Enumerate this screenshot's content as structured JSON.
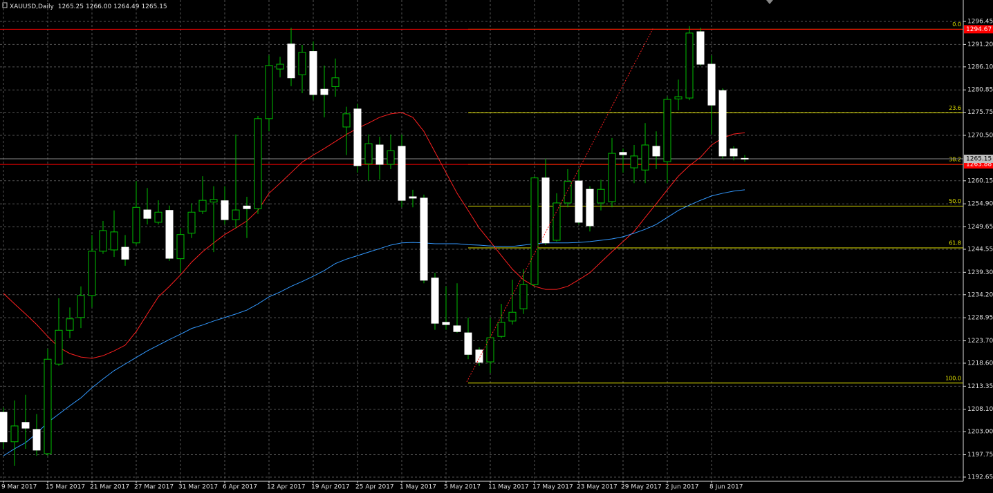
{
  "header": {
    "symbol": "XAUUSD,Daily",
    "ohlc": [
      "1265.25",
      "1266.00",
      "1264.49",
      "1265.15"
    ]
  },
  "chart_data": {
    "type": "candlestick",
    "categories": [
      "9 Mar 2017",
      null,
      null,
      null,
      "15 Mar 2017",
      null,
      null,
      null,
      "21 Mar 2017",
      null,
      null,
      null,
      "27 Mar 2017",
      null,
      null,
      null,
      "31 Mar 2017",
      null,
      null,
      null,
      "6 Apr 2017",
      null,
      null,
      null,
      "12 Apr 2017",
      null,
      null,
      null,
      "19 Apr 2017",
      null,
      null,
      null,
      "25 Apr 2017",
      null,
      null,
      null,
      "1 May 2017",
      null,
      null,
      null,
      "5 May 2017",
      null,
      null,
      null,
      "11 May 2017",
      null,
      null,
      null,
      "17 May 2017",
      null,
      null,
      null,
      "23 May 2017",
      null,
      null,
      null,
      "29 May 2017",
      null,
      null,
      null,
      "2 Jun 2017",
      null,
      null,
      null,
      "8 Jun 2017",
      null,
      null,
      null
    ],
    "open": [
      1207.4,
      1200.7,
      1205.1,
      1203.5,
      1198.0,
      1218.4,
      1226.1,
      1229.0,
      1234.0,
      1244.1,
      1244.4,
      1245.0,
      1246.0,
      1253.5,
      1250.7,
      1253.4,
      1242.4,
      1248.2,
      1253.2,
      1255.3,
      1255.6,
      1251.3,
      1254.4,
      1253.8,
      1274.3,
      1285.6,
      1291.3,
      1284.3,
      1289.6,
      1281.0,
      1281.6,
      1272.4,
      1276.5,
      1264.0,
      1268.3,
      1263.9,
      1268.0,
      1256.5,
      1256.2,
      1238.0,
      1227.9,
      1227.1,
      1225.5,
      1221.6,
      1218.9,
      1224.7,
      1228.2,
      1231.0,
      1236.5,
      1260.8,
      1246.6,
      1255.1,
      1260.1,
      1258.2,
      1255.1,
      1255.4,
      1266.6,
      1263.1,
      1262.6,
      1268.0,
      1264.5,
      1278.8,
      1279.0,
      1294.1,
      1286.7,
      1280.7,
      1267.4,
      1265.25
    ],
    "high": [
      1208.5,
      1210.1,
      1211.4,
      1207.0,
      1221.9,
      1233.4,
      1231.3,
      1236.1,
      1247.8,
      1251.0,
      1253.4,
      1247.8,
      1260.1,
      1258.5,
      1255.7,
      1254.5,
      1249.4,
      1255.0,
      1261.2,
      1258.9,
      1258.9,
      1270.7,
      1256.5,
      1274.9,
      1288.7,
      1288.4,
      1295.0,
      1291.1,
      1291.9,
      1286.4,
      1288.0,
      1277.0,
      1277.7,
      1270.7,
      1270.2,
      1270.7,
      1270.7,
      1258.1,
      1257.0,
      1239.2,
      1236.1,
      1236.8,
      1229.0,
      1222.2,
      1229.0,
      1232.1,
      1237.6,
      1240.0,
      1261.2,
      1265.2,
      1257.3,
      1262.8,
      1262.8,
      1258.9,
      1260.4,
      1269.9,
      1267.5,
      1268.3,
      1273.3,
      1271.4,
      1279.3,
      1283.2,
      1295.4,
      1295.0,
      1288.7,
      1281.2,
      1268.0,
      1266.0
    ],
    "low": [
      1199.1,
      1195.2,
      1199.1,
      1197.5,
      1197.5,
      1218.0,
      1224.3,
      1226.6,
      1231.3,
      1243.5,
      1242.8,
      1240.8,
      1245.5,
      1250.2,
      1250.2,
      1241.9,
      1239.2,
      1247.1,
      1252.6,
      1243.9,
      1250.2,
      1249.4,
      1247.1,
      1252.6,
      1271.4,
      1283.7,
      1281.7,
      1280.1,
      1278.5,
      1274.6,
      1279.3,
      1266.0,
      1262.0,
      1260.1,
      1260.4,
      1262.8,
      1254.1,
      1254.1,
      1236.8,
      1226.2,
      1226.2,
      1225.5,
      1219.5,
      1218.0,
      1216.4,
      1224.3,
      1227.4,
      1229.8,
      1236.1,
      1245.5,
      1246.3,
      1254.1,
      1250.2,
      1248.6,
      1253.4,
      1254.1,
      1262.0,
      1259.6,
      1259.6,
      1262.8,
      1259.6,
      1276.2,
      1278.5,
      1286.4,
      1270.7,
      1265.2,
      1264.8,
      1264.49
    ],
    "close": [
      1200.7,
      1204.3,
      1203.8,
      1198.8,
      1219.5,
      1226.1,
      1228.7,
      1234.0,
      1244.1,
      1248.8,
      1248.5,
      1242.3,
      1254.1,
      1251.6,
      1253.0,
      1242.5,
      1247.9,
      1253.0,
      1255.7,
      1255.9,
      1251.3,
      1253.5,
      1253.8,
      1274.3,
      1286.4,
      1286.7,
      1283.6,
      1289.4,
      1279.8,
      1279.8,
      1283.6,
      1275.4,
      1263.6,
      1268.6,
      1263.9,
      1267.0,
      1255.7,
      1256.2,
      1237.5,
      1227.7,
      1227.4,
      1225.8,
      1220.6,
      1218.8,
      1224.4,
      1227.9,
      1230.2,
      1236.5,
      1260.8,
      1246.0,
      1255.1,
      1260.0,
      1250.7,
      1249.9,
      1258.2,
      1266.4,
      1266.1,
      1265.8,
      1268.3,
      1265.8,
      1278.7,
      1279.3,
      1293.8,
      1286.7,
      1277.4,
      1265.8,
      1265.8,
      1265.15
    ],
    "up_color": "#00c000",
    "down_color": "#ffffff",
    "lines": [
      {
        "color": "#ff2020",
        "values": [
          1234.5,
          1232.1,
          1229.8,
          1227.4,
          1224.7,
          1222.2,
          1220.8,
          1220.0,
          1219.7,
          1220.3,
          1221.4,
          1222.7,
          1225.8,
          1229.8,
          1233.7,
          1236.1,
          1238.7,
          1241.6,
          1244.0,
          1246.0,
          1247.9,
          1249.4,
          1251.0,
          1253.4,
          1257.3,
          1259.6,
          1262.0,
          1264.4,
          1266.0,
          1267.5,
          1269.1,
          1270.7,
          1272.1,
          1273.3,
          1274.6,
          1275.4,
          1275.7,
          1274.6,
          1271.4,
          1266.7,
          1262.0,
          1257.3,
          1253.4,
          1249.4,
          1246.3,
          1243.1,
          1240.0,
          1237.6,
          1236.1,
          1235.4,
          1235.4,
          1236.1,
          1237.6,
          1239.2,
          1241.6,
          1244.0,
          1246.3,
          1248.6,
          1251.8,
          1254.9,
          1258.1,
          1261.2,
          1263.6,
          1265.5,
          1268.3,
          1269.9,
          1270.8,
          1271.1
        ]
      },
      {
        "color": "#3399ff",
        "values": [
          1197.5,
          1199.1,
          1200.5,
          1202.6,
          1205.1,
          1207.0,
          1208.9,
          1210.7,
          1213.0,
          1215.0,
          1216.9,
          1218.4,
          1219.9,
          1221.4,
          1222.7,
          1224.0,
          1225.2,
          1226.5,
          1227.3,
          1228.2,
          1229.0,
          1229.8,
          1230.7,
          1232.1,
          1233.7,
          1234.8,
          1236.1,
          1237.2,
          1238.4,
          1239.7,
          1241.3,
          1242.3,
          1243.1,
          1243.9,
          1244.7,
          1245.5,
          1246.0,
          1246.1,
          1246.0,
          1245.8,
          1245.8,
          1245.8,
          1245.6,
          1245.5,
          1245.3,
          1245.2,
          1245.2,
          1245.5,
          1245.8,
          1246.0,
          1246.0,
          1246.0,
          1246.1,
          1246.3,
          1246.6,
          1246.9,
          1247.4,
          1248.2,
          1249.1,
          1250.2,
          1251.8,
          1253.4,
          1254.6,
          1255.7,
          1256.7,
          1257.3,
          1257.8,
          1258.1
        ]
      }
    ],
    "hlines": [
      1294.67,
      1263.88
    ],
    "hline_color": "#ff0000",
    "bid": 1265.15,
    "fibo": {
      "high": 1294.67,
      "low": 1214.07,
      "start": 42,
      "color": "#e6e600",
      "levels": [
        {
          "value": 0,
          "label": "0.0"
        },
        23.6,
        38.2,
        {
          "value": 50,
          "label": "50.0"
        },
        61.8,
        {
          "value": 100,
          "label": "100.0"
        }
      ]
    },
    "ylim": [
      1191.7,
      1301.33
    ],
    "yticks": [
      1296.45,
      {
        "value": 1291.2,
        "label": "1291.20"
      },
      {
        "value": 1286.1,
        "label": "1286.10"
      },
      1280.85,
      1275.75,
      {
        "value": 1270.5,
        "label": "1270.50"
      },
      1260.15,
      {
        "value": 1254.9,
        "label": "1254.90"
      },
      1249.65,
      1244.55,
      {
        "value": 1239.3,
        "label": "1239.30"
      },
      {
        "value": 1234.2,
        "label": "1234.20"
      },
      1228.95,
      {
        "value": 1223.7,
        "label": "1223.70"
      },
      {
        "value": 1218.6,
        "label": "1218.60"
      },
      1213.35,
      {
        "value": 1208.1,
        "label": "1208.10"
      },
      {
        "value": 1203,
        "label": "1203.00"
      },
      1197.75,
      1192.65
    ],
    "grid": true
  }
}
